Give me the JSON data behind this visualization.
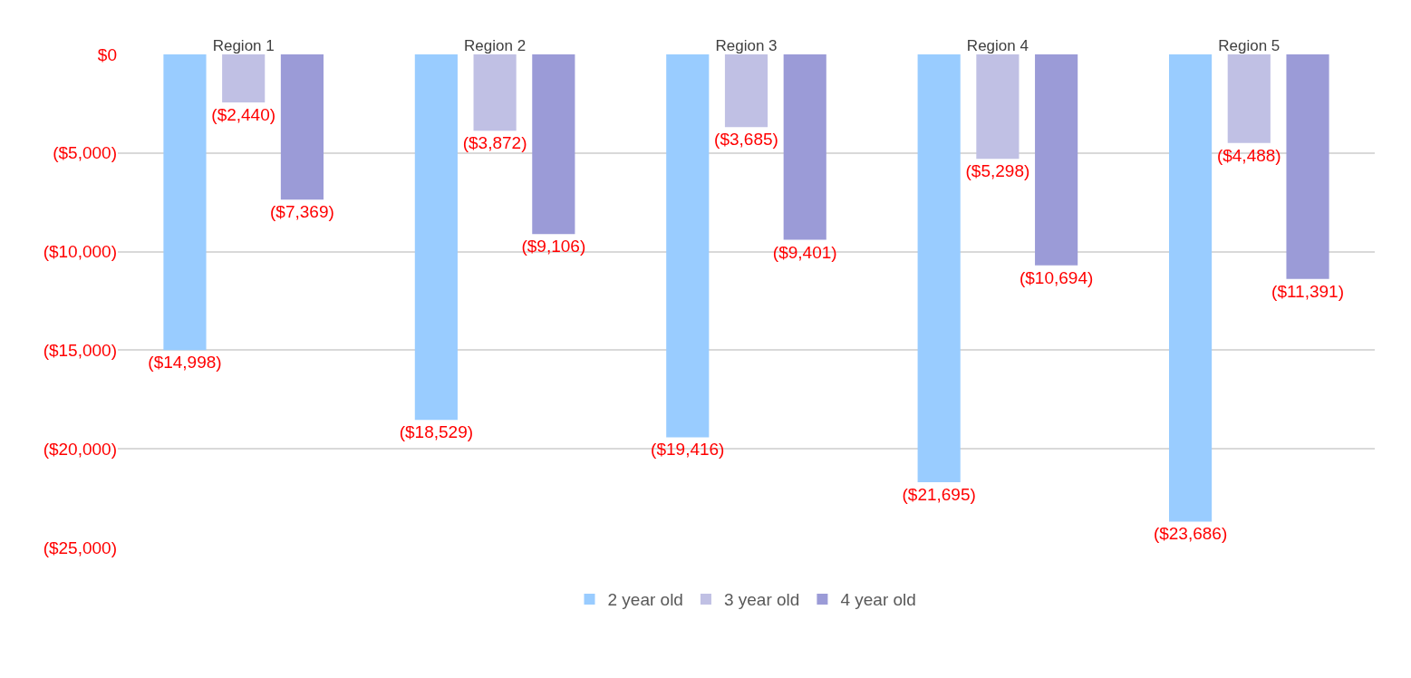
{
  "chart_data": {
    "type": "bar",
    "categories": [
      "Region 1",
      "Region 2",
      "Region 3",
      "Region 4",
      "Region 5"
    ],
    "series": [
      {
        "name": "2 year old",
        "color": "#99ccff",
        "values": [
          -14998,
          -18529,
          -19416,
          -21695,
          -23686
        ],
        "value_labels": [
          "($14,998)",
          "($18,529)",
          "($19,416)",
          "($21,695)",
          "($23,686)"
        ]
      },
      {
        "name": "3 year old",
        "color": "#c0c0e4",
        "values": [
          -2440,
          -3872,
          -3685,
          -5298,
          -4488
        ],
        "value_labels": [
          "($2,440)",
          "($3,872)",
          "($3,685)",
          "($5,298)",
          "($4,488)"
        ]
      },
      {
        "name": "4 year old",
        "color": "#9b9bd7",
        "values": [
          -7369,
          -9106,
          -9401,
          -10694,
          -11391
        ],
        "value_labels": [
          "($7,369)",
          "($9,106)",
          "($9,401)",
          "($10,694)",
          "($11,391)"
        ]
      }
    ],
    "ylim": [
      -25000,
      0
    ],
    "yticks": [
      {
        "value": 0,
        "label": "$0"
      },
      {
        "value": -5000,
        "label": "($5,000)"
      },
      {
        "value": -10000,
        "label": "($10,000)"
      },
      {
        "value": -15000,
        "label": "($15,000)"
      },
      {
        "value": -20000,
        "label": "($20,000)"
      },
      {
        "value": -25000,
        "label": "($25,000)"
      }
    ],
    "grid": "y",
    "legend": "bottom"
  }
}
